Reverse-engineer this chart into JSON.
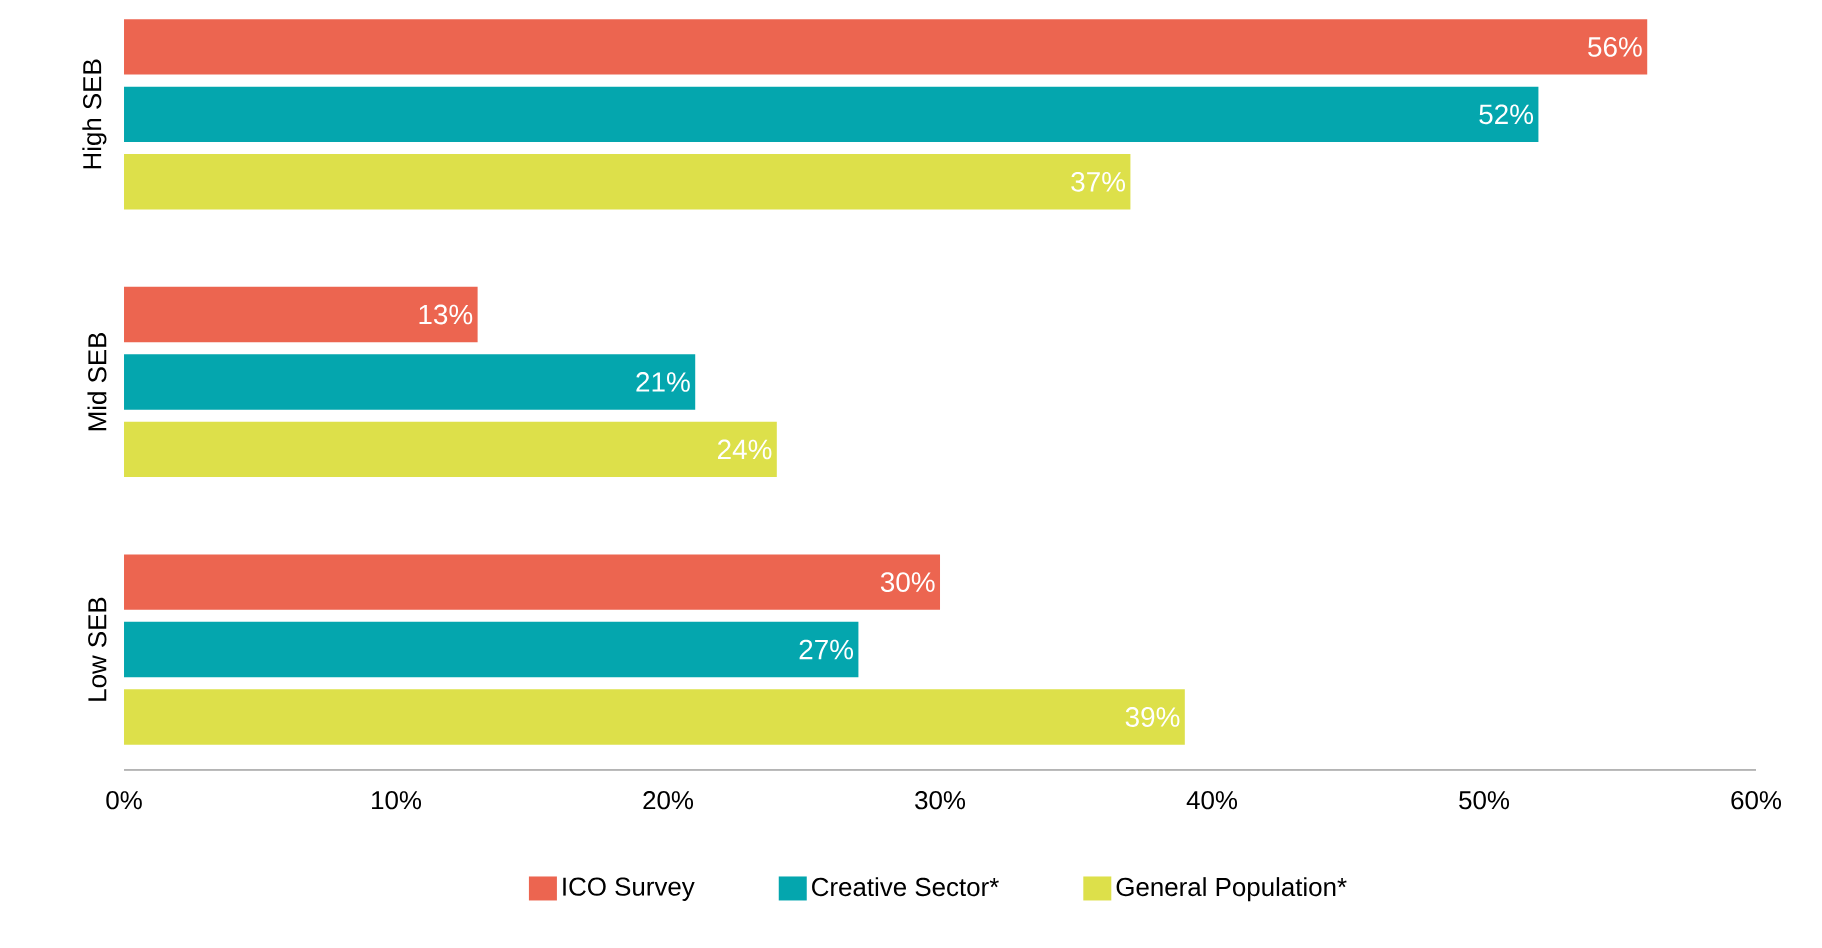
{
  "chart_data": {
    "type": "bar",
    "orientation": "horizontal",
    "categories": [
      "High SEB",
      "Mid SEB",
      "Low SEB"
    ],
    "series": [
      {
        "name": "ICO Survey",
        "color": "#ec6550",
        "values": [
          56,
          13,
          30
        ],
        "value_labels": [
          "56%",
          "13%",
          "30%"
        ]
      },
      {
        "name": "Creative Sector*",
        "color": "#04a6ae",
        "values": [
          52,
          21,
          27
        ],
        "value_labels": [
          "52%",
          "21%",
          "27%"
        ]
      },
      {
        "name": "General Population*",
        "color": "#dde04a",
        "values": [
          37,
          24,
          39
        ],
        "value_labels": [
          "37%",
          "24%",
          "39%"
        ]
      }
    ],
    "xlim": [
      0,
      60
    ],
    "xticks": [
      {
        "value": 0,
        "label": "0%"
      },
      {
        "value": 10,
        "label": "10%"
      },
      {
        "value": 20,
        "label": "20%"
      },
      {
        "value": 30,
        "label": "30%"
      },
      {
        "value": 40,
        "label": "40%"
      },
      {
        "value": 50,
        "label": "50%"
      },
      {
        "value": 60,
        "label": "60%"
      }
    ],
    "legend": "bottom"
  }
}
